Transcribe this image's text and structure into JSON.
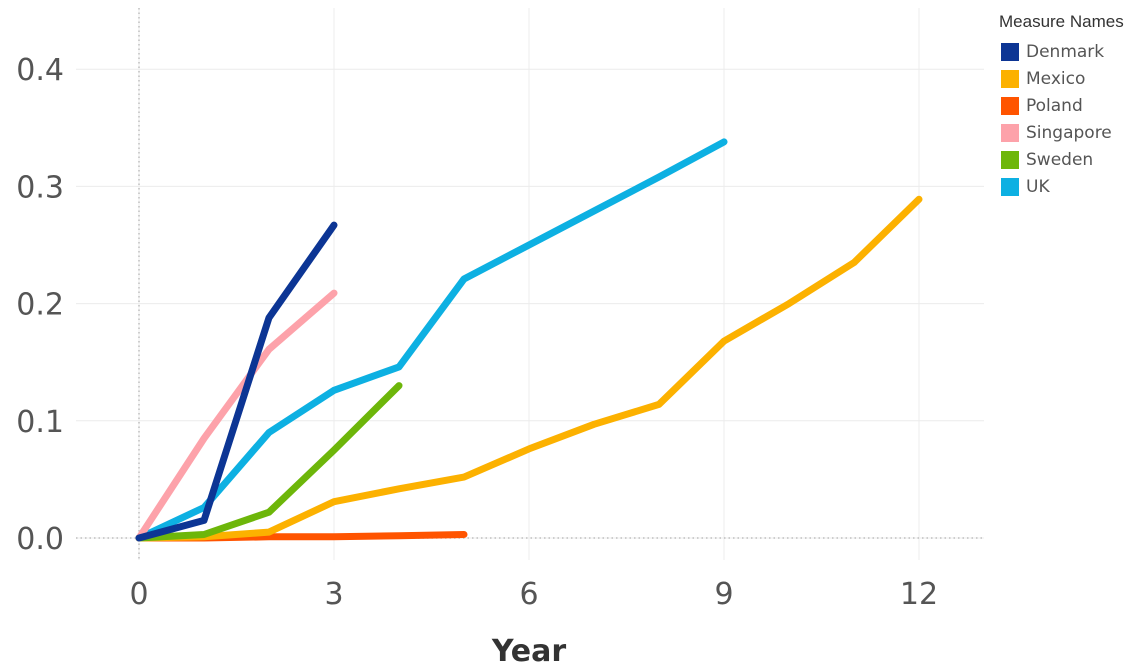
{
  "chart_data": {
    "type": "line",
    "title": "",
    "xlabel": "Year",
    "ylabel": "",
    "xlim": [
      -1,
      13
    ],
    "ylim": [
      -0.02,
      0.45
    ],
    "xticks": [
      0,
      3,
      6,
      9,
      12
    ],
    "yticks": [
      0.0,
      0.1,
      0.2,
      0.3,
      0.4
    ],
    "ytick_labels": [
      "0.0",
      "0.1",
      "0.2",
      "0.3",
      "0.4"
    ],
    "grid": true,
    "legend_title": "Measure Names",
    "legend_position": "right",
    "series": [
      {
        "name": "Denmark",
        "color": "#0c3594",
        "x": [
          0,
          1,
          2,
          3
        ],
        "y": [
          0.0,
          0.015,
          0.188,
          0.267
        ]
      },
      {
        "name": "Mexico",
        "color": "#fcb100",
        "x": [
          0,
          1,
          2,
          3,
          4,
          5,
          6,
          7,
          8,
          9,
          10,
          11,
          12
        ],
        "y": [
          0.0,
          0.001,
          0.005,
          0.031,
          0.042,
          0.052,
          0.076,
          0.097,
          0.114,
          0.168,
          0.2,
          0.235,
          0.289
        ]
      },
      {
        "name": "Poland",
        "color": "#ff5400",
        "x": [
          0,
          1,
          2,
          3,
          4,
          5
        ],
        "y": [
          0.0,
          0.0,
          0.001,
          0.001,
          0.002,
          0.003
        ]
      },
      {
        "name": "Singapore",
        "color": "#fda2aa",
        "x": [
          0,
          1,
          2,
          3
        ],
        "y": [
          0.0,
          0.085,
          0.161,
          0.209
        ]
      },
      {
        "name": "Sweden",
        "color": "#6db60a",
        "x": [
          0,
          1,
          2,
          3,
          4
        ],
        "y": [
          0.0,
          0.003,
          0.022,
          0.075,
          0.13
        ]
      },
      {
        "name": "UK",
        "color": "#0db0e2",
        "x": [
          0,
          1,
          2,
          3,
          4,
          5,
          6,
          7,
          8,
          9
        ],
        "y": [
          0.0,
          0.026,
          0.09,
          0.126,
          0.146,
          0.221,
          0.25,
          0.279,
          0.308,
          0.338
        ]
      }
    ]
  }
}
